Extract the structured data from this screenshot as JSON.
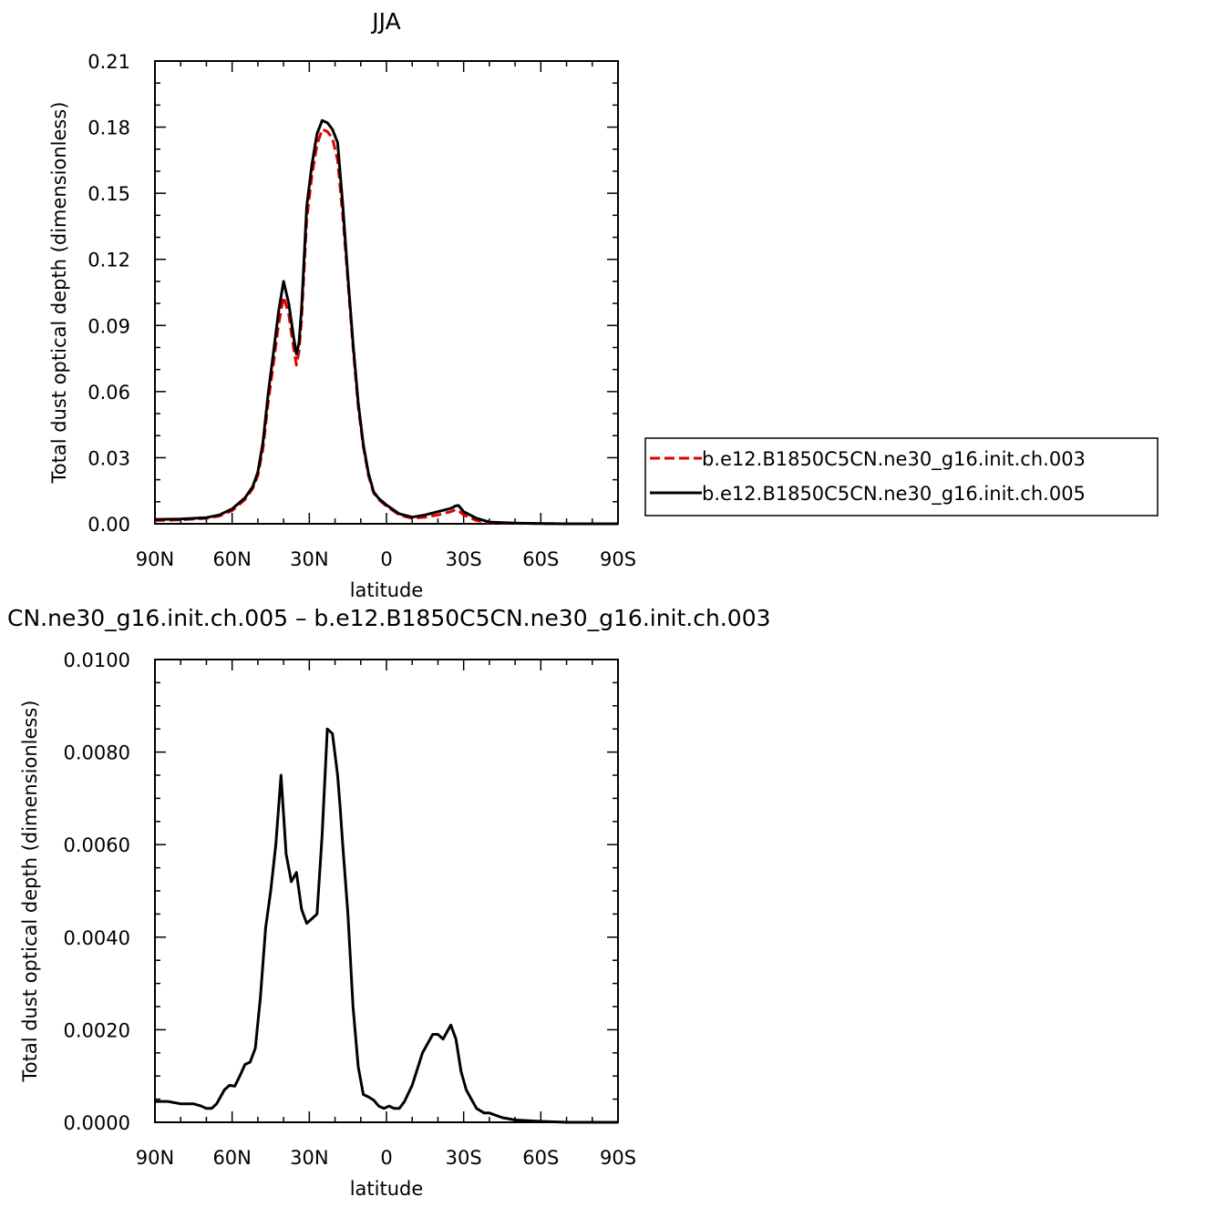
{
  "chart_data": [
    {
      "type": "line",
      "title": "JJA",
      "xlabel": "latitude",
      "ylabel": "Total dust optical depth (dimensionless)",
      "xlim": [
        90,
        -90
      ],
      "ylim": [
        0,
        0.21
      ],
      "xticks": [
        90,
        60,
        30,
        0,
        -30,
        -60,
        -90
      ],
      "xtick_labels": [
        "90N",
        "60N",
        "30N",
        "0",
        "30S",
        "60S",
        "90S"
      ],
      "yticks": [
        0,
        0.03,
        0.06,
        0.09,
        0.12,
        0.15,
        0.18,
        0.21
      ],
      "ytick_labels": [
        "0.00",
        "0.03",
        "0.06",
        "0.09",
        "0.12",
        "0.15",
        "0.18",
        "0.21"
      ],
      "grid": false,
      "legend": "right",
      "series": [
        {
          "name": "b.e12.B1850C5CN.ne30_g16.init.ch.003",
          "color": "#e00000",
          "dash": "dashed",
          "x": [
            90,
            80,
            70,
            65,
            60,
            55,
            52,
            50,
            48,
            46,
            44,
            42,
            40,
            38,
            36,
            35,
            34,
            33,
            31,
            29,
            27,
            25,
            23,
            21,
            19,
            17,
            15,
            13,
            11,
            9,
            7,
            5,
            3,
            0,
            -5,
            -10,
            -15,
            -20,
            -25,
            -27,
            -28,
            -30,
            -35,
            -40,
            -50,
            -60,
            -70,
            -80,
            -90
          ],
          "y": [
            0.0015,
            0.0018,
            0.0025,
            0.0035,
            0.006,
            0.011,
            0.016,
            0.022,
            0.034,
            0.055,
            0.072,
            0.09,
            0.103,
            0.095,
            0.079,
            0.072,
            0.078,
            0.093,
            0.138,
            0.158,
            0.172,
            0.179,
            0.178,
            0.175,
            0.165,
            0.14,
            0.11,
            0.08,
            0.053,
            0.035,
            0.022,
            0.014,
            0.011,
            0.008,
            0.004,
            0.0025,
            0.003,
            0.004,
            0.0055,
            0.0065,
            0.006,
            0.004,
            0.0015,
            0.0005,
            0.0002,
            0.0001,
            0.0,
            0.0,
            0.0
          ]
        },
        {
          "name": "b.e12.B1850C5CN.ne30_g16.init.ch.005",
          "color": "#000000",
          "dash": "solid",
          "x": [
            90,
            80,
            70,
            65,
            60,
            55,
            52,
            50,
            48,
            46,
            44,
            42,
            40,
            38,
            36,
            35,
            34,
            33,
            31,
            29,
            27,
            25,
            23,
            21,
            19,
            17,
            15,
            13,
            11,
            9,
            7,
            5,
            3,
            0,
            -5,
            -10,
            -15,
            -20,
            -25,
            -27,
            -28,
            -30,
            -35,
            -40,
            -50,
            -60,
            -70,
            -80,
            -90
          ],
          "y": [
            0.002,
            0.0022,
            0.0028,
            0.004,
            0.0068,
            0.0118,
            0.0168,
            0.0235,
            0.037,
            0.059,
            0.077,
            0.096,
            0.11,
            0.1,
            0.084,
            0.077,
            0.082,
            0.098,
            0.144,
            0.163,
            0.177,
            0.183,
            0.182,
            0.179,
            0.173,
            0.145,
            0.112,
            0.082,
            0.055,
            0.036,
            0.023,
            0.0145,
            0.0115,
            0.0085,
            0.0045,
            0.003,
            0.004,
            0.0055,
            0.007,
            0.0082,
            0.0083,
            0.0055,
            0.0025,
            0.0008,
            0.0003,
            0.0001,
            0.0,
            0.0,
            0.0
          ]
        }
      ]
    },
    {
      "type": "line",
      "title": "CN.ne30_g16.init.ch.005 – b.e12.B1850C5CN.ne30_g16.init.ch.003",
      "xlabel": "latitude",
      "ylabel": "Total dust optical depth (dimensionless)",
      "xlim": [
        90,
        -90
      ],
      "ylim": [
        0,
        0.01
      ],
      "xticks": [
        90,
        60,
        30,
        0,
        -30,
        -60,
        -90
      ],
      "xtick_labels": [
        "90N",
        "60N",
        "30N",
        "0",
        "30S",
        "60S",
        "90S"
      ],
      "yticks": [
        0,
        0.002,
        0.004,
        0.006,
        0.008,
        0.01
      ],
      "ytick_labels": [
        "0.0000",
        "0.0020",
        "0.0040",
        "0.0060",
        "0.0080",
        "0.0100"
      ],
      "grid": false,
      "series": [
        {
          "color": "#000000",
          "dash": "solid",
          "x": [
            90,
            85,
            80,
            75,
            72,
            70,
            68,
            66,
            63,
            61,
            59,
            57,
            55,
            53,
            51,
            49,
            47,
            45,
            43,
            41,
            39,
            37,
            35,
            33,
            31,
            29,
            27,
            25,
            23,
            21,
            19,
            18,
            17,
            15,
            13,
            11,
            9,
            7,
            5,
            3,
            1,
            -1,
            -3,
            -5,
            -7,
            -10,
            -14,
            -18,
            -20,
            -22,
            -24,
            -25,
            -27,
            -29,
            -31,
            -33,
            -35,
            -38,
            -40,
            -45,
            -50,
            -60,
            -70,
            -80,
            -90
          ],
          "y": [
            0.00045,
            0.00045,
            0.0004,
            0.0004,
            0.00035,
            0.0003,
            0.0003,
            0.0004,
            0.0007,
            0.0008,
            0.00078,
            0.001,
            0.00125,
            0.0013,
            0.0016,
            0.0027,
            0.0042,
            0.005,
            0.006,
            0.0075,
            0.0058,
            0.0052,
            0.0054,
            0.0046,
            0.0043,
            0.0044,
            0.0045,
            0.0062,
            0.0085,
            0.0084,
            0.0075,
            0.0068,
            0.006,
            0.0045,
            0.0025,
            0.0012,
            0.0006,
            0.00055,
            0.00048,
            0.00035,
            0.0003,
            0.00035,
            0.0003,
            0.0003,
            0.00045,
            0.0008,
            0.0015,
            0.0019,
            0.0019,
            0.0018,
            0.002,
            0.0021,
            0.0018,
            0.0011,
            0.0007,
            0.0005,
            0.0003,
            0.0002,
            0.0002,
            0.0001,
            5e-05,
            2e-05,
            0.0,
            0.0,
            0.0
          ]
        }
      ]
    }
  ]
}
